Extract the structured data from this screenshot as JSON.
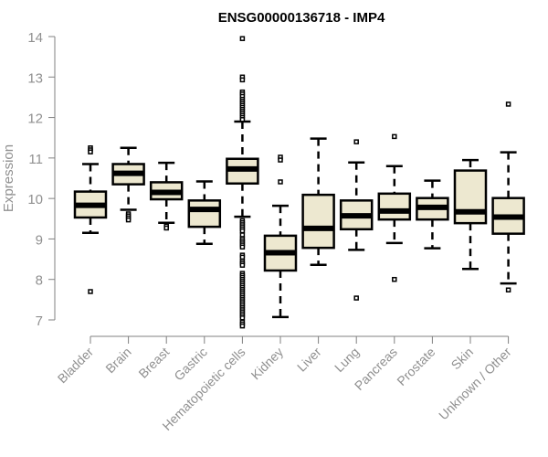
{
  "chart_data": {
    "type": "boxplot",
    "title": "ENSG00000136718 - IMP4",
    "xlabel": "",
    "ylabel": "Expression",
    "ylim": [
      7,
      14
    ],
    "yticks": [
      "7",
      "8",
      "9",
      "10",
      "11",
      "12",
      "13",
      "14"
    ],
    "grid": false,
    "box_color": "#ede8d0",
    "categories": [
      "Bladder",
      "Brain",
      "Breast",
      "Gastric",
      "Hematopoietic cells",
      "Kidney",
      "Liver",
      "Lung",
      "Pancreas",
      "Prostate",
      "Skin",
      "Unknown / Other"
    ],
    "boxes": [
      {
        "low": 9.15,
        "q1": 9.53,
        "median": 9.83,
        "q3": 10.17,
        "high": 10.85,
        "outliers": [
          11.25,
          11.2,
          11.15,
          7.7
        ]
      },
      {
        "low": 9.72,
        "q1": 10.35,
        "median": 10.62,
        "q3": 10.85,
        "high": 11.25,
        "outliers": [
          9.62,
          9.57,
          9.52,
          9.47
        ]
      },
      {
        "low": 9.4,
        "q1": 9.98,
        "median": 10.15,
        "q3": 10.4,
        "high": 10.88,
        "outliers": [
          9.32,
          9.27
        ]
      },
      {
        "low": 8.88,
        "q1": 9.3,
        "median": 9.73,
        "q3": 9.95,
        "high": 10.42,
        "outliers": []
      },
      {
        "low": 9.55,
        "q1": 10.37,
        "median": 10.73,
        "q3": 10.98,
        "high": 11.9,
        "outliers": [
          13.95,
          13.0,
          12.93,
          12.63,
          12.58,
          12.52,
          12.45,
          12.4,
          12.35,
          12.3,
          12.25,
          12.2,
          12.15,
          12.1,
          12.05,
          12.0,
          11.95,
          9.45,
          9.4,
          9.35,
          9.3,
          9.25,
          9.2,
          9.1,
          9.0,
          8.95,
          8.9,
          8.85,
          8.8,
          8.6,
          8.55,
          8.45,
          8.4,
          8.35,
          8.15,
          8.1,
          8.05,
          8.0,
          7.95,
          7.9,
          7.85,
          7.8,
          7.75,
          7.7,
          7.65,
          7.6,
          7.55,
          7.5,
          7.45,
          7.4,
          7.35,
          7.3,
          7.25,
          7.2,
          7.15,
          7.1,
          7.05,
          6.95,
          6.9,
          6.85
        ]
      },
      {
        "low": 7.07,
        "q1": 8.22,
        "median": 8.66,
        "q3": 9.08,
        "high": 9.82,
        "outliers": [
          11.02,
          10.95,
          10.41
        ]
      },
      {
        "low": 8.36,
        "q1": 8.78,
        "median": 9.26,
        "q3": 10.09,
        "high": 11.48,
        "outliers": []
      },
      {
        "low": 8.73,
        "q1": 9.24,
        "median": 9.57,
        "q3": 9.95,
        "high": 10.89,
        "outliers": [
          11.4,
          7.54
        ]
      },
      {
        "low": 8.9,
        "q1": 9.48,
        "median": 9.69,
        "q3": 10.12,
        "high": 10.8,
        "outliers": [
          11.53,
          8.0
        ]
      },
      {
        "low": 8.77,
        "q1": 9.48,
        "median": 9.78,
        "q3": 10.01,
        "high": 10.44,
        "outliers": []
      },
      {
        "low": 8.26,
        "q1": 9.39,
        "median": 9.67,
        "q3": 10.69,
        "high": 10.95,
        "outliers": []
      },
      {
        "low": 7.9,
        "q1": 9.13,
        "median": 9.54,
        "q3": 10.01,
        "high": 11.14,
        "outliers": [
          12.33,
          7.74
        ]
      }
    ]
  }
}
